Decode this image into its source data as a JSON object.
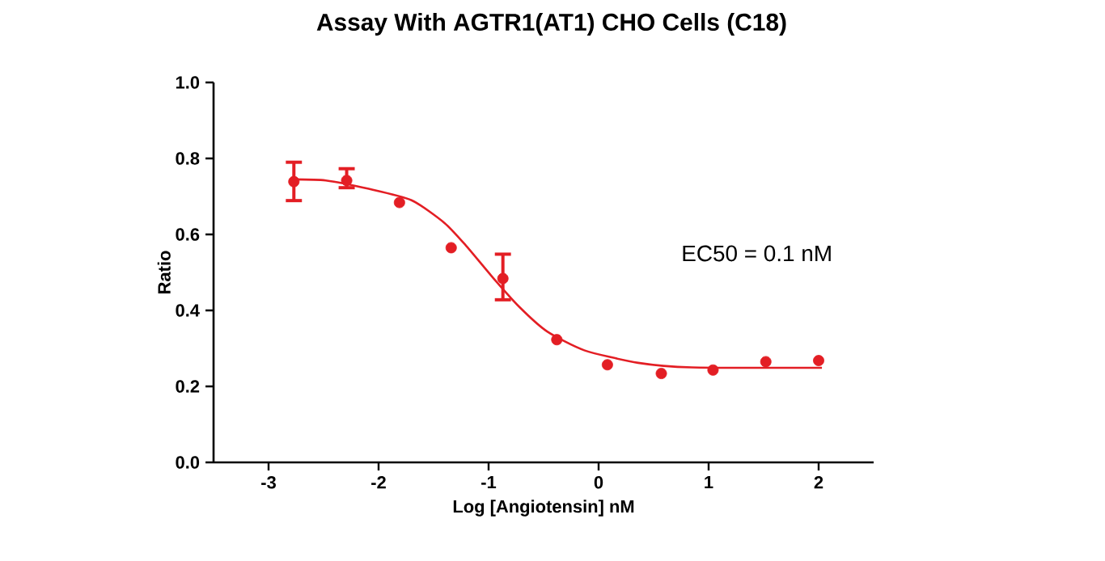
{
  "chart_data": {
    "type": "scatter",
    "title": "Assay With AGTR1(AT1) CHO Cells (C18)",
    "xlabel": "Log [Angiotensin] nM",
    "ylabel": "Ratio",
    "xlim": [
      -3.5,
      2.5
    ],
    "ylim": [
      0,
      1
    ],
    "xticks": [
      -3,
      -2,
      -1,
      0,
      1,
      2
    ],
    "yticks": [
      {
        "value": 0,
        "label": "0.0"
      },
      {
        "value": 0.2,
        "label": "0.2"
      },
      {
        "value": 0.4,
        "label": "0.4"
      },
      {
        "value": 0.6,
        "label": "0.6"
      },
      {
        "value": 0.8,
        "label": "0.8"
      },
      {
        "value": 1,
        "label": "1.0"
      }
    ],
    "annotations": [
      "EC50 = 0.1 nM"
    ],
    "grid": false,
    "series": [
      {
        "marker": "circle",
        "color": "#e31e24",
        "x": [
          -2.77,
          -2.29,
          -1.81,
          -1.34,
          -0.87,
          -0.38,
          0.08,
          0.57,
          1.04,
          1.52,
          2.0
        ],
        "values": [
          0.739,
          0.742,
          0.684,
          0.565,
          0.484,
          0.323,
          0.257,
          0.234,
          0.243,
          0.265,
          0.268
        ],
        "errors": [
          [
            0.689,
            0.79
          ],
          [
            0.723,
            0.773
          ],
          null,
          null,
          [
            0.428,
            0.548
          ],
          null,
          null,
          null,
          null,
          null,
          null
        ]
      },
      {
        "type": "line",
        "marker": "none",
        "color": "#e31e24",
        "x": [
          -2.77,
          -2.48,
          -2.09,
          -1.7,
          -1.4,
          -1.21,
          -0.96,
          -0.72,
          -0.47,
          -0.13,
          0.36,
          0.85,
          2.03
        ],
        "values": [
          0.745,
          0.742,
          0.72,
          0.69,
          0.63,
          0.572,
          0.486,
          0.409,
          0.345,
          0.295,
          0.262,
          0.25,
          0.249
        ]
      }
    ]
  }
}
